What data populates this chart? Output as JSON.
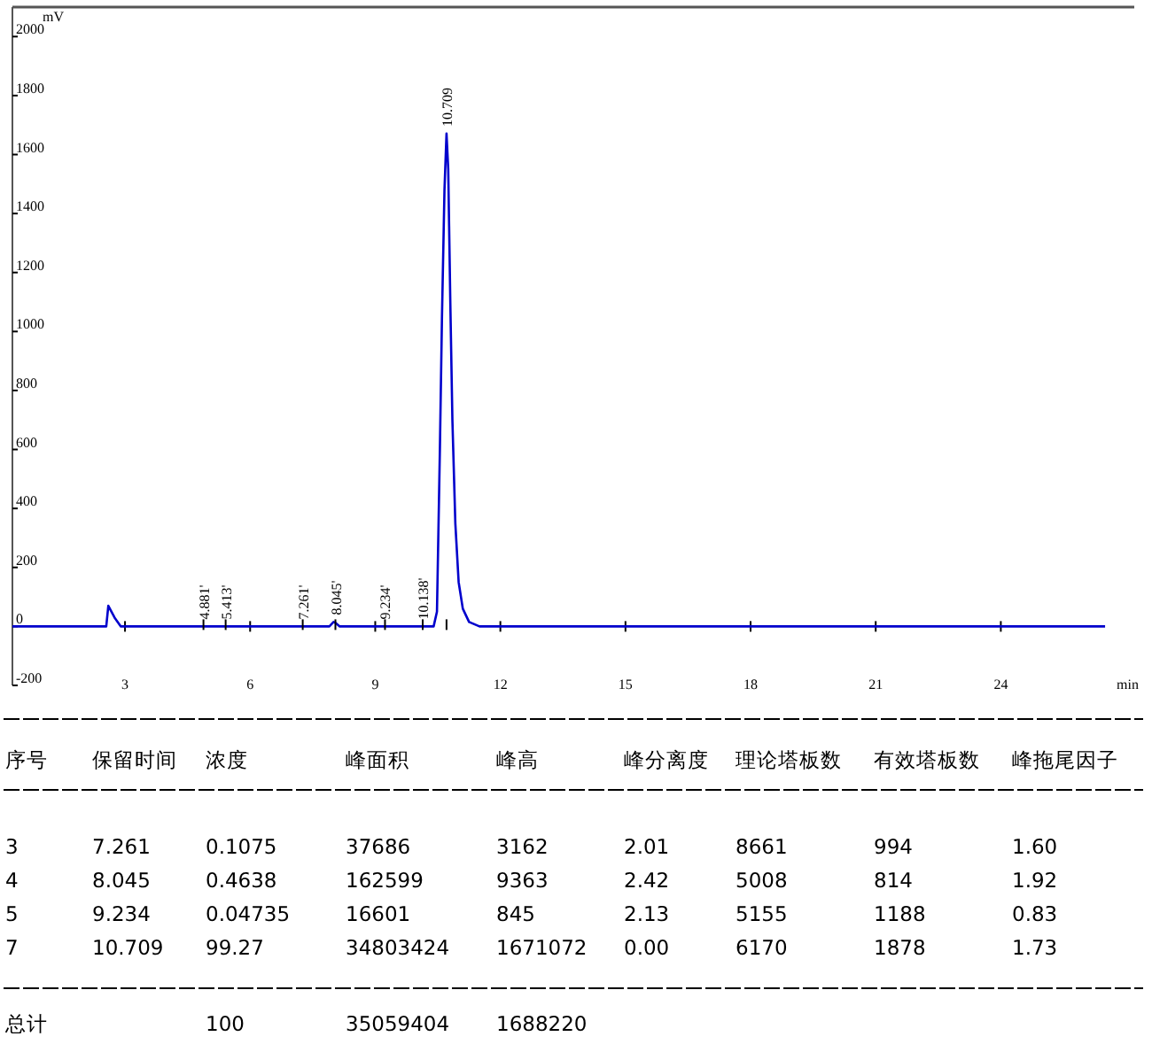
{
  "chart_data": {
    "type": "line",
    "ylabel": "mV",
    "xlabel": "min",
    "x": [
      0.3,
      2.5,
      2.55,
      2.6,
      2.75,
      2.9,
      7.9,
      8.0,
      8.05,
      8.15,
      8.3,
      10.4,
      10.48,
      10.55,
      10.6,
      10.66,
      10.709,
      10.75,
      10.8,
      10.85,
      10.92,
      11.0,
      11.1,
      11.25,
      11.5,
      26.5
    ],
    "series": [
      {
        "color": "#0000cc",
        "values": [
          0,
          0,
          0,
          70,
          30,
          0,
          0,
          15,
          12,
          0,
          0,
          0,
          50,
          600,
          1050,
          1480,
          1671,
          1550,
          1100,
          700,
          350,
          150,
          60,
          15,
          0,
          0
        ]
      }
    ],
    "xlim": [
      0.3,
      27.2
    ],
    "ylim": [
      -200,
      2100
    ],
    "xticks": [
      3,
      6,
      9,
      12,
      15,
      18,
      21,
      24
    ],
    "yticks": [
      -200,
      0,
      200,
      400,
      600,
      800,
      1000,
      1200,
      1400,
      1600,
      1800,
      2000
    ],
    "grid": false,
    "marker": "none",
    "line_style": "solid",
    "annotations": [
      {
        "text": "4.881'",
        "x": 4.881,
        "y": 0
      },
      {
        "text": "5.413'",
        "x": 5.413,
        "y": 0
      },
      {
        "text": "7.261'",
        "x": 7.261,
        "y": 0
      },
      {
        "text": "8.045'",
        "x": 8.045,
        "y": 15
      },
      {
        "text": "9.234'",
        "x": 9.234,
        "y": 0
      },
      {
        "text": "10.138'",
        "x": 10.138,
        "y": 0
      },
      {
        "text": "10.709",
        "x": 10.709,
        "y": 1671
      },
      "序号",
      "保留时间",
      "浓度",
      "峰面积",
      "峰高",
      "峰分离度",
      "理论塔板数",
      "有效塔板数",
      "峰拖尾因子",
      "3",
      "7.261",
      "0.1075",
      "37686",
      "3162",
      "2.01",
      "8661",
      "994",
      "1.60",
      "4",
      "8.045",
      "0.4638",
      "162599",
      "9363",
      "2.42",
      "5008",
      "814",
      "1.92",
      "5",
      "9.234",
      "0.04735",
      "16601",
      "845",
      "2.13",
      "5155",
      "1188",
      "0.83",
      "7",
      "10.709",
      "99.27",
      "34803424",
      "1671072",
      "0.00",
      "6170",
      "1878",
      "1.73",
      "总计",
      "100",
      "35059404",
      "1688220"
    ]
  }
}
